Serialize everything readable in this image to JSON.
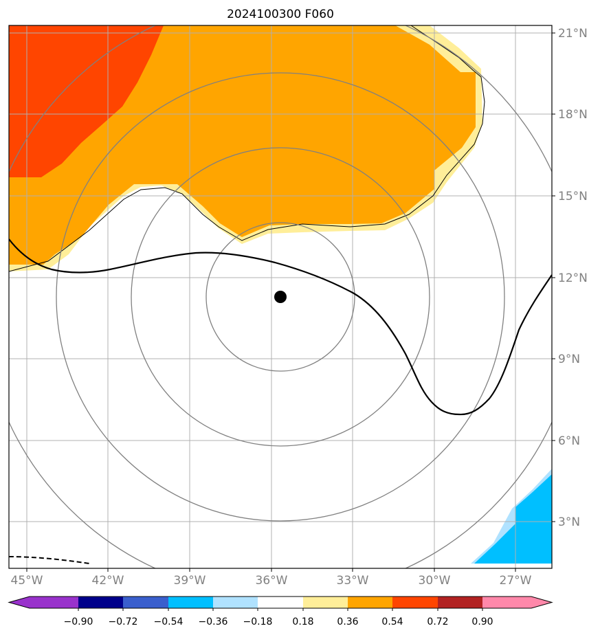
{
  "title": "2024100300 F060",
  "colors": {
    "very_strong": "#ff4500",
    "strong": "#ffa500",
    "weak": "#ffee99",
    "neg_weak": "#b0e2ff",
    "neg": "#00bfff",
    "coast": "#000000",
    "grid": "#b0b0b0",
    "rings": "#808080",
    "center": "#000000"
  },
  "map": {
    "lon_labels": [
      "45°W",
      "42°W",
      "39°W",
      "36°W",
      "33°W",
      "30°W",
      "27°W"
    ],
    "lat_labels": [
      "21°N",
      "18°N",
      "15°N",
      "12°N",
      "9°N",
      "6°N",
      "3°N"
    ],
    "storm_center": {
      "lon": "35.7°W",
      "lat": "11.3°N"
    },
    "range_rings": 4
  },
  "colorbar": {
    "labels": [
      "−0.90",
      "−0.72",
      "−0.54",
      "−0.36",
      "−0.18",
      "0.18",
      "0.36",
      "0.54",
      "0.72",
      "0.90"
    ],
    "colors": [
      "#9932cc",
      "#00008b",
      "#3a5fcd",
      "#00bfff",
      "#b0e2ff",
      "#ffffff",
      "#ffee99",
      "#ffa500",
      "#ff4500",
      "#b22222",
      "#ff88aa"
    ]
  }
}
